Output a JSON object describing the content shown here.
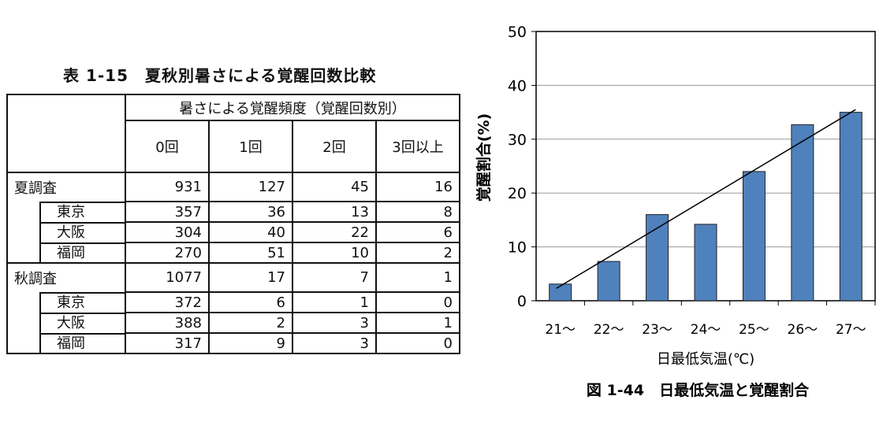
{
  "table": {
    "title": "表 1-15　夏秋別暑さによる覚醒回数比較",
    "group_header": "暑さによる覚醒頻度（覚醒回数別）",
    "columns": [
      "0回",
      "1回",
      "2回",
      "3回以上"
    ],
    "groups": [
      {
        "label": "夏調査",
        "values": [
          "931",
          "127",
          "45",
          "16"
        ],
        "rows": [
          {
            "label": "東京",
            "values": [
              "357",
              "36",
              "13",
              "8"
            ]
          },
          {
            "label": "大阪",
            "values": [
              "304",
              "40",
              "22",
              "6"
            ]
          },
          {
            "label": "福岡",
            "values": [
              "270",
              "51",
              "10",
              "2"
            ]
          }
        ]
      },
      {
        "label": "秋調査",
        "values": [
          "1077",
          "17",
          "7",
          "1"
        ],
        "rows": [
          {
            "label": "東京",
            "values": [
              "372",
              "6",
              "1",
              "0"
            ]
          },
          {
            "label": "大阪",
            "values": [
              "388",
              "2",
              "3",
              "1"
            ]
          },
          {
            "label": "福岡",
            "values": [
              "317",
              "9",
              "3",
              "0"
            ]
          }
        ]
      }
    ]
  },
  "chart_data": {
    "type": "bar",
    "title": "図 1-44　日最低気温と覚醒割合",
    "xlabel": "日最低気温(℃)",
    "ylabel": "覚醒割合(%)",
    "categories": [
      "21～",
      "22～",
      "23～",
      "24～",
      "25～",
      "26～",
      "27～"
    ],
    "values": [
      3.1,
      7.3,
      16.0,
      14.2,
      24.0,
      32.7,
      35.0
    ],
    "trendline": {
      "start": 2.3,
      "end": 35.5
    },
    "ylim": [
      0,
      50
    ],
    "yticks": [
      "0",
      "10",
      "20",
      "30",
      "40",
      "50"
    ],
    "grid": true,
    "bar_color": "#4f81bd"
  }
}
